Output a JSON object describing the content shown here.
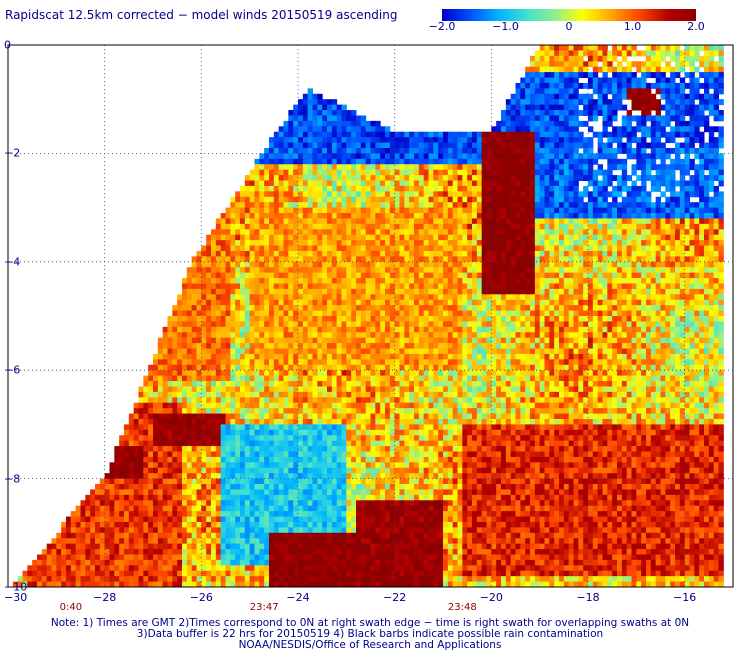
{
  "title": "Rapidscat 12.5km corrected − model winds 20150519 ascending",
  "colorbar": {
    "ticks": [
      {
        "value": -2.0,
        "label": "−2.0"
      },
      {
        "value": -1.0,
        "label": "−1.0"
      },
      {
        "value": 0,
        "label": "0"
      },
      {
        "value": 1.0,
        "label": "1.0"
      },
      {
        "value": 2.0,
        "label": "2.0"
      }
    ],
    "colors": [
      "#0000c8",
      "#0050ff",
      "#00b4ff",
      "#40e0d0",
      "#90ee90",
      "#ffff00",
      "#ffa500",
      "#ff4500",
      "#b40000",
      "#8b0000"
    ]
  },
  "chart_data": {
    "type": "heatmap",
    "title": "Rapidscat 12.5km corrected − model winds 20150519 ascending",
    "xlabel": "",
    "ylabel": "",
    "xlim": [
      -30,
      -15
    ],
    "ylim": [
      -10,
      0
    ],
    "xticks": [
      -30,
      -28,
      -26,
      -24,
      -22,
      -20,
      -18,
      -16
    ],
    "yticks": [
      0,
      -2,
      -4,
      -6,
      -8,
      -10
    ],
    "xtick_labels": [
      "−30",
      "−28",
      "−26",
      "−24",
      "−22",
      "−20",
      "−18",
      "−16"
    ],
    "ytick_labels": [
      "0",
      "−2",
      "−4",
      "−6",
      "−8",
      "−10"
    ],
    "colorscale_range": [
      -2.0,
      2.0
    ],
    "grid": true,
    "time_labels": [
      {
        "x": -28.7,
        "label": "0:40"
      },
      {
        "x": -24.7,
        "label": "23:47"
      },
      {
        "x": -20.6,
        "label": "23:48"
      }
    ],
    "swath_left_edge": [
      [
        -30,
        -10
      ],
      [
        -28,
        -8
      ],
      [
        -26.2,
        -4
      ],
      [
        -24.6,
        -1.8
      ],
      [
        -23.8,
        -0.8
      ],
      [
        -22.0,
        -1.6
      ],
      [
        -20.0,
        -1.6
      ],
      [
        -19.0,
        0
      ],
      [
        -15.2,
        0
      ]
    ],
    "regions": [
      {
        "x0": -26.2,
        "x1": -15.2,
        "y0": -2.2,
        "y1": -0.5,
        "value": -1.6
      },
      {
        "x0": -19.2,
        "x1": -15.2,
        "y0": -3.2,
        "y1": -1.9,
        "value": -1.5
      },
      {
        "x0": -29.6,
        "x1": -26.4,
        "y0": -10.0,
        "y1": -6.6,
        "value": 1.2
      },
      {
        "x0": -28.6,
        "x1": -27.2,
        "y0": -8.0,
        "y1": -7.4,
        "value": 2.0
      },
      {
        "x0": -27.0,
        "x1": -25.5,
        "y0": -7.4,
        "y1": -6.8,
        "value": 1.9
      },
      {
        "x0": -25.6,
        "x1": -23.0,
        "y0": -9.6,
        "y1": -7.0,
        "value": -0.9
      },
      {
        "x0": -24.6,
        "x1": -22.6,
        "y0": -10.0,
        "y1": -9.0,
        "value": 2.0
      },
      {
        "x0": -22.8,
        "x1": -21.0,
        "y0": -10.0,
        "y1": -8.4,
        "value": 1.9
      },
      {
        "x0": -20.2,
        "x1": -19.1,
        "y0": -4.6,
        "y1": -1.6,
        "value": 2.0
      },
      {
        "x0": -17.2,
        "x1": -16.5,
        "y0": -1.3,
        "y1": -0.8,
        "value": 2.0
      },
      {
        "x0": -20.6,
        "x1": -15.2,
        "y0": -9.8,
        "y1": -7.0,
        "value": 1.3
      },
      {
        "x0": -25.0,
        "x1": -20.6,
        "y0": -6.0,
        "y1": -3.0,
        "value": 0.7
      },
      {
        "x0": -28.0,
        "x1": -25.4,
        "y0": -6.2,
        "y1": -2.4,
        "value": 0.9
      }
    ]
  },
  "footer": {
    "line1": "Note: 1) Times are GMT  2)Times correspond to 0N at right swath edge − time is right swath for overlapping swaths at 0N",
    "line2": "3)Data buffer is 22 hrs for 20150519  4) Black barbs indicate possible rain contamination",
    "line3": "NOAA/NESDIS/Office of Research and Applications"
  }
}
